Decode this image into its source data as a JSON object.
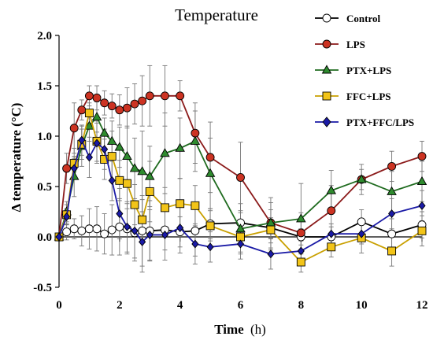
{
  "chart_data": {
    "type": "line",
    "title": "Temperature",
    "xlabel_bold": "Time",
    "xlabel_unit": "(h)",
    "ylabel": "Δ temperature (°C)",
    "xlim": [
      0,
      12
    ],
    "ylim": [
      -0.5,
      2.0
    ],
    "x_ticks": [
      0,
      2,
      4,
      6,
      8,
      10,
      12
    ],
    "y_ticks": [
      -0.5,
      0.0,
      0.5,
      1.0,
      1.5,
      2.0
    ],
    "y_tick_labels": [
      "-0.5",
      "0.0",
      "0.5",
      "1.0",
      "1.5",
      "2.0"
    ],
    "legend_position": "top-right",
    "series": [
      {
        "name": "Control",
        "color": "#ffffff",
        "line": "#000000",
        "marker": "circle",
        "x": [
          0,
          0.25,
          0.5,
          0.75,
          1,
          1.25,
          1.5,
          1.75,
          2,
          2.25,
          2.5,
          2.75,
          3,
          3.5,
          4,
          4.5,
          5,
          6,
          7,
          8,
          9,
          10,
          11,
          12
        ],
        "y": [
          0.0,
          0.05,
          0.08,
          0.06,
          0.08,
          0.08,
          0.03,
          0.07,
          0.1,
          0.08,
          0.04,
          0.06,
          0.06,
          0.07,
          0.05,
          0.06,
          0.13,
          0.14,
          0.09,
          0.0,
          0.0,
          0.15,
          0.03,
          0.12
        ],
        "err": [
          0.0,
          0.08,
          0.1,
          0.15,
          0.2,
          0.22,
          0.2,
          0.25,
          0.28,
          0.25,
          0.25,
          0.35,
          0.3,
          0.2,
          0.15,
          0.25,
          0.15,
          0.12,
          0.1,
          0.08,
          0.1,
          0.12,
          0.15,
          0.13
        ]
      },
      {
        "name": "LPS",
        "color": "#cc3322",
        "line": "#8b1a1a",
        "marker": "circle",
        "x": [
          0,
          0.25,
          0.5,
          0.75,
          1,
          1.25,
          1.5,
          1.75,
          2,
          2.25,
          2.5,
          2.75,
          3,
          3.5,
          4,
          4.5,
          5,
          6,
          7,
          8,
          9,
          10,
          11,
          12
        ],
        "y": [
          0.0,
          0.68,
          1.08,
          1.26,
          1.4,
          1.38,
          1.33,
          1.3,
          1.26,
          1.28,
          1.32,
          1.35,
          1.4,
          1.4,
          1.4,
          1.03,
          0.79,
          0.59,
          0.14,
          0.04,
          0.26,
          0.57,
          0.7,
          0.8
        ],
        "err": [
          0.0,
          0.15,
          0.25,
          0.1,
          0.1,
          0.12,
          0.12,
          0.12,
          0.15,
          0.2,
          0.2,
          0.25,
          0.3,
          0.3,
          0.15,
          0.3,
          0.35,
          0.35,
          0.25,
          0.2,
          0.25,
          0.1,
          0.15,
          0.15
        ]
      },
      {
        "name": "PTX+LPS",
        "color": "#2e8b2e",
        "line": "#1f6b1f",
        "marker": "triangle",
        "x": [
          0,
          0.25,
          0.5,
          0.75,
          1,
          1.25,
          1.5,
          1.75,
          2,
          2.25,
          2.5,
          2.75,
          3,
          3.5,
          4,
          4.5,
          5,
          6,
          7,
          8,
          9,
          10,
          11,
          12
        ],
        "y": [
          0.0,
          0.25,
          0.6,
          0.9,
          1.1,
          1.19,
          1.03,
          0.95,
          0.89,
          0.8,
          0.68,
          0.65,
          0.6,
          0.83,
          0.88,
          0.95,
          0.63,
          0.08,
          0.14,
          0.18,
          0.46,
          0.57,
          0.45,
          0.55
        ],
        "err": [
          0.0,
          0.1,
          0.2,
          0.2,
          0.15,
          0.15,
          0.15,
          0.2,
          0.2,
          0.3,
          0.3,
          0.4,
          0.3,
          0.4,
          0.3,
          0.3,
          0.35,
          0.25,
          0.2,
          0.35,
          0.2,
          0.15,
          0.2,
          0.2
        ]
      },
      {
        "name": "FFC+LPS",
        "color": "#f2c418",
        "line": "#c9a000",
        "marker": "square",
        "x": [
          0,
          0.25,
          0.5,
          0.75,
          1,
          1.25,
          1.5,
          1.75,
          2,
          2.25,
          2.5,
          2.75,
          3,
          3.5,
          4,
          4.5,
          5,
          6,
          7,
          8,
          9,
          10,
          11,
          12
        ],
        "y": [
          0.0,
          0.22,
          0.73,
          0.92,
          1.23,
          0.95,
          0.77,
          0.8,
          0.56,
          0.53,
          0.32,
          0.17,
          0.45,
          0.29,
          0.33,
          0.31,
          0.11,
          0.0,
          0.07,
          -0.25,
          -0.1,
          -0.01,
          -0.14,
          0.06
        ],
        "err": [
          0.0,
          0.1,
          0.15,
          0.15,
          0.1,
          0.2,
          0.2,
          0.25,
          0.2,
          0.25,
          0.2,
          0.2,
          0.3,
          0.2,
          0.25,
          0.2,
          0.15,
          0.15,
          0.2,
          0.1,
          0.1,
          0.15,
          0.15,
          0.15
        ]
      },
      {
        "name": "PTX+FFC/LPS",
        "color": "#1a1aa6",
        "line": "#1a1aa6",
        "marker": "diamond",
        "x": [
          0,
          0.25,
          0.5,
          0.75,
          1,
          1.25,
          1.5,
          1.75,
          2,
          2.25,
          2.5,
          2.75,
          3,
          3.5,
          4,
          4.5,
          5,
          6,
          7,
          8,
          9,
          10,
          11,
          12
        ],
        "y": [
          0.0,
          0.2,
          0.68,
          0.96,
          0.79,
          0.93,
          0.87,
          0.56,
          0.23,
          0.1,
          0.06,
          -0.05,
          0.02,
          0.02,
          0.09,
          -0.07,
          -0.1,
          -0.07,
          -0.17,
          -0.14,
          0.03,
          0.03,
          0.23,
          0.31
        ],
        "err": [
          0.0,
          0.08,
          0.1,
          0.15,
          0.2,
          0.2,
          0.2,
          0.2,
          0.25,
          0.25,
          0.3,
          0.3,
          0.25,
          0.25,
          0.25,
          0.2,
          0.15,
          0.15,
          0.15,
          0.1,
          0.1,
          0.1,
          0.15,
          0.15
        ]
      }
    ]
  }
}
